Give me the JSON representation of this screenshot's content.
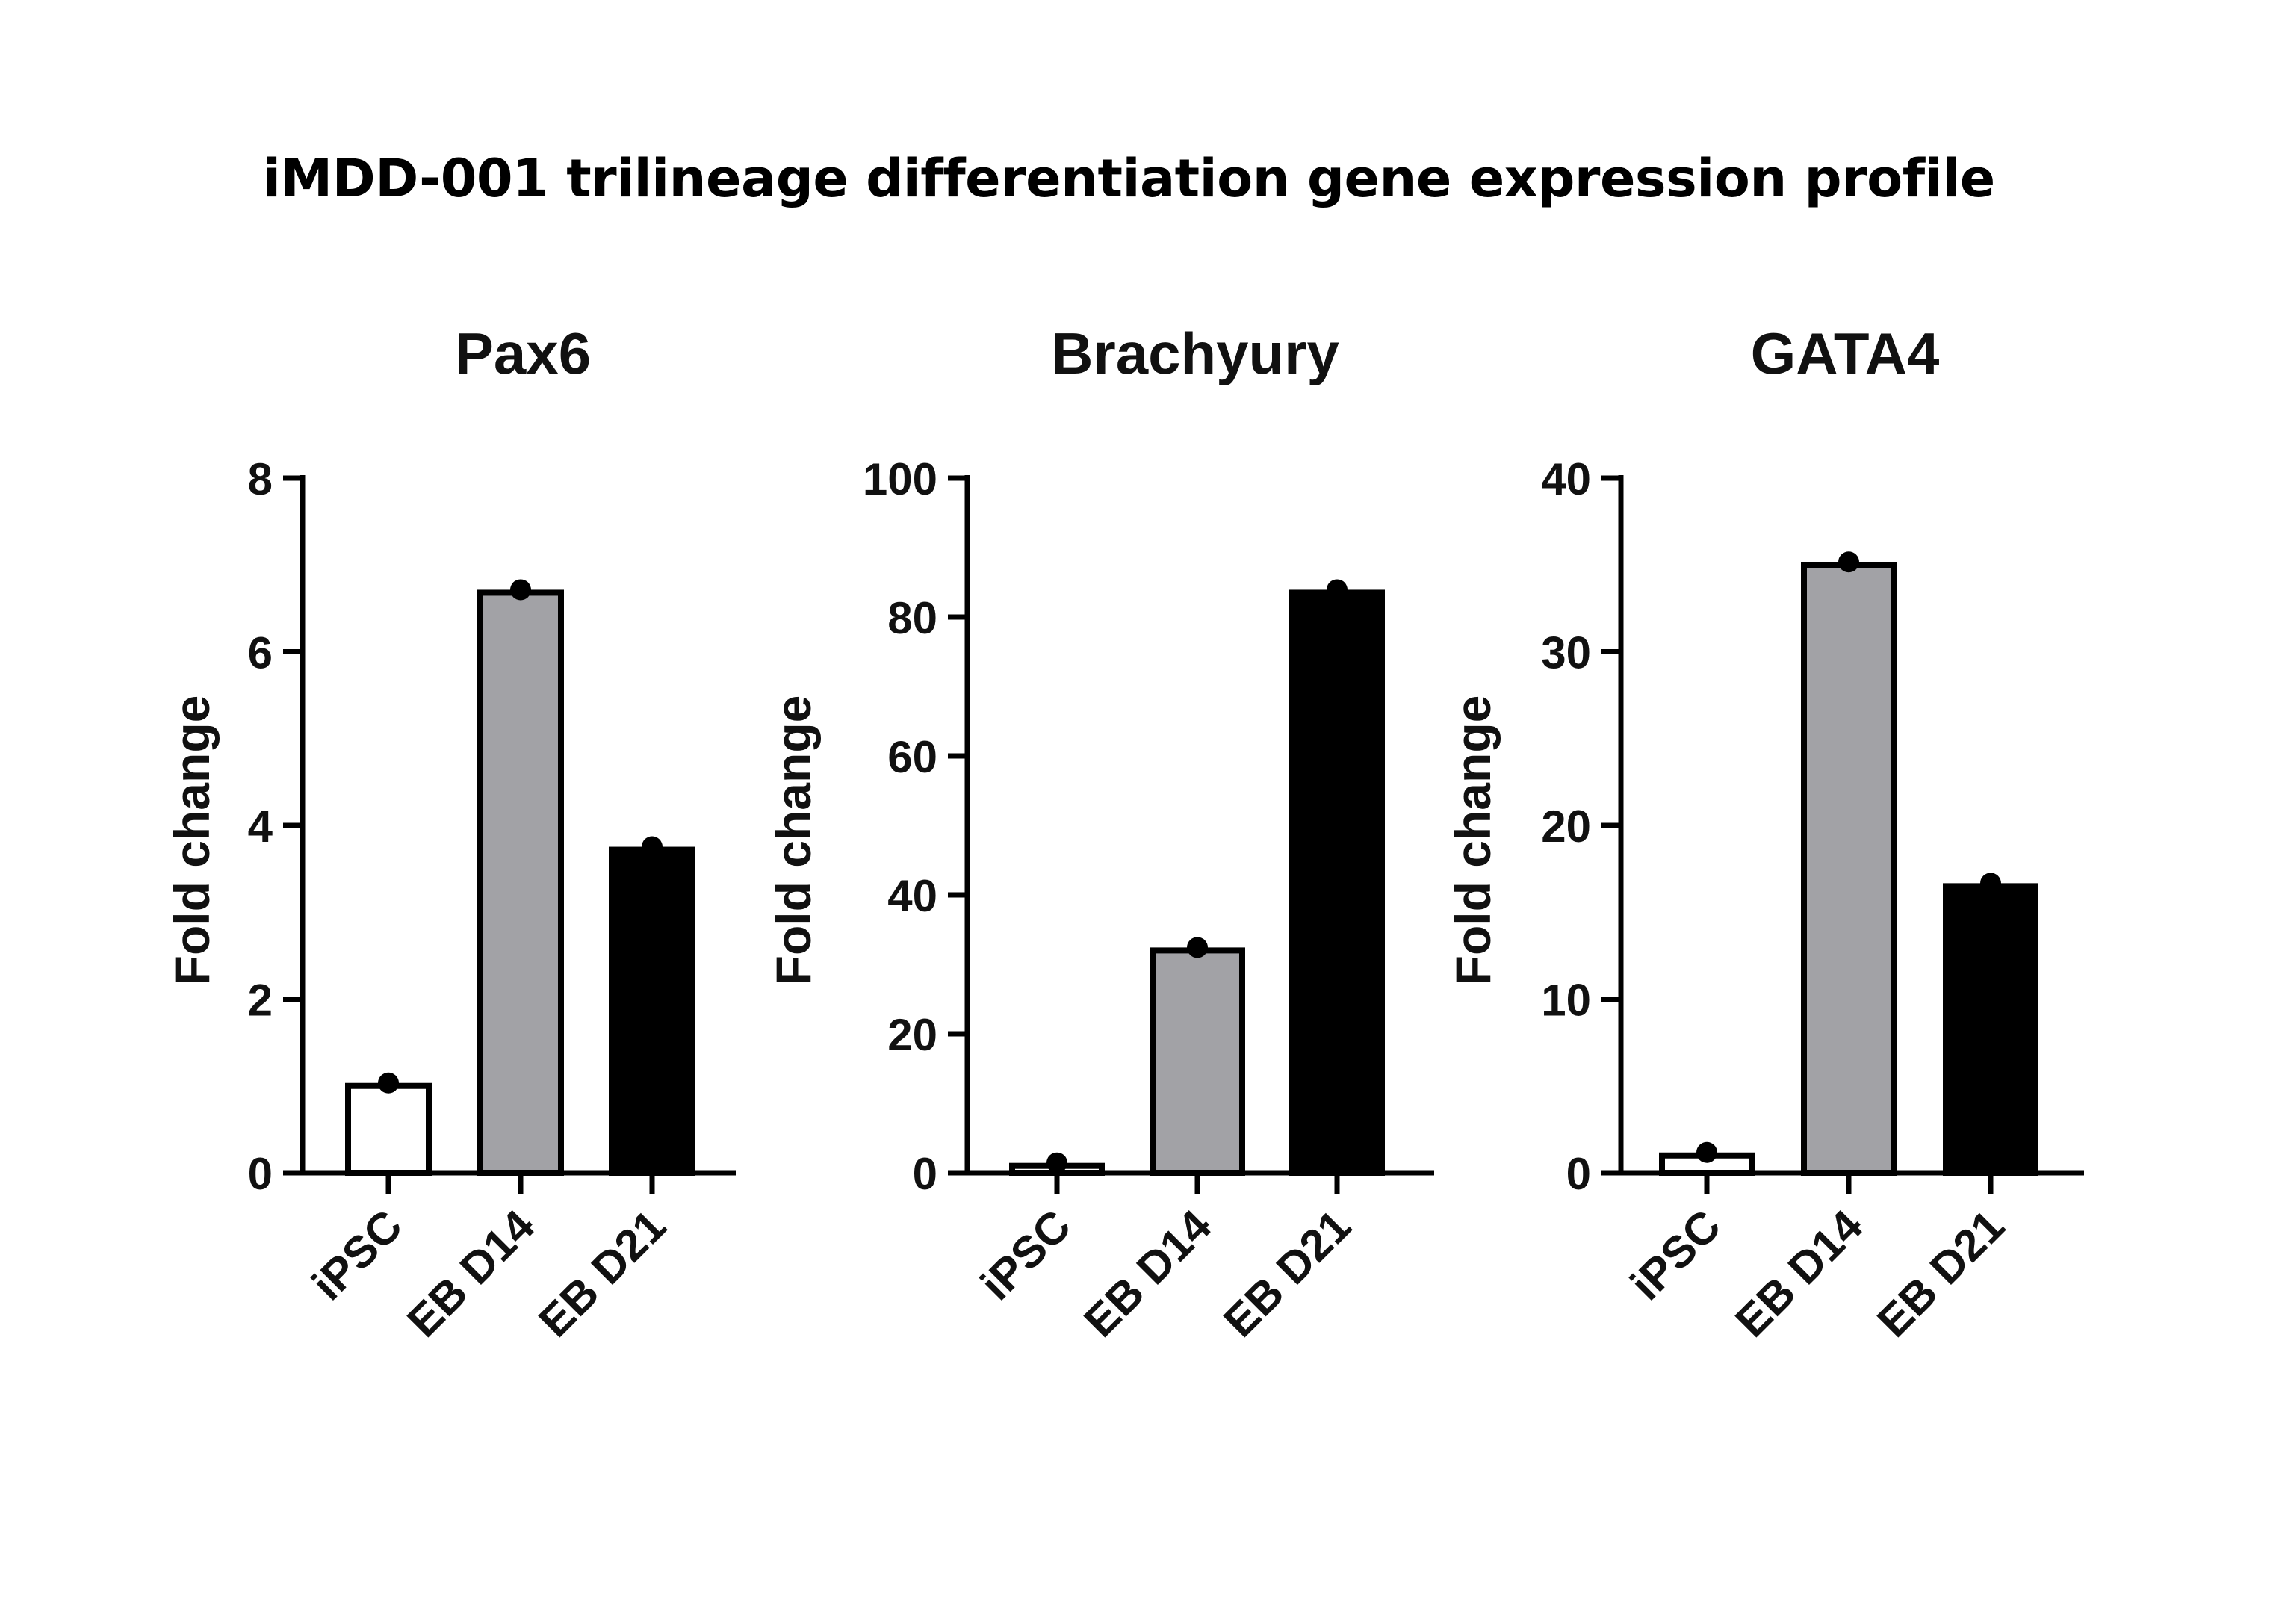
{
  "page_title": "iMDD-001 trilineage differentiation gene expression profile",
  "colors": {
    "ipsc": "#ffffff",
    "eb_d14": "#a2a2a6",
    "eb_d21": "#000000",
    "axis": "#000000"
  },
  "chart_data": [
    {
      "type": "bar",
      "title": "Pax6",
      "ylabel": "Fold change",
      "xlabel": "",
      "categories": [
        "iPSC",
        "EB D14",
        "EB D21"
      ],
      "values": [
        1.0,
        6.68,
        3.72
      ],
      "points": [
        1.0,
        6.68,
        3.72
      ],
      "ylim": [
        0,
        8
      ],
      "yticks": [
        0,
        2,
        4,
        6,
        8
      ],
      "ytick_labels": [
        "0",
        "2",
        "4",
        "6",
        "8"
      ],
      "grid": false
    },
    {
      "type": "bar",
      "title": "Brachyury",
      "ylabel": "Fold change",
      "xlabel": "",
      "categories": [
        "iPSC",
        "EB D14",
        "EB D21"
      ],
      "values": [
        1.0,
        32.0,
        83.5
      ],
      "points": [
        1.0,
        32.0,
        83.5
      ],
      "ylim": [
        0,
        100
      ],
      "yticks": [
        0,
        20,
        40,
        60,
        80,
        100
      ],
      "ytick_labels": [
        "0",
        "20",
        "40",
        "60",
        "80",
        "100"
      ],
      "grid": false
    },
    {
      "type": "bar",
      "title": "GATA4",
      "ylabel": "Fold change",
      "xlabel": "",
      "categories": [
        "iPSC",
        "EB D14",
        "EB D21"
      ],
      "values": [
        1.0,
        35.0,
        16.5
      ],
      "points": [
        1.0,
        35.0,
        16.5
      ],
      "ylim": [
        0,
        40
      ],
      "yticks": [
        0,
        10,
        20,
        30,
        40
      ],
      "ytick_labels": [
        "0",
        "10",
        "20",
        "30",
        "40"
      ],
      "grid": false
    }
  ]
}
